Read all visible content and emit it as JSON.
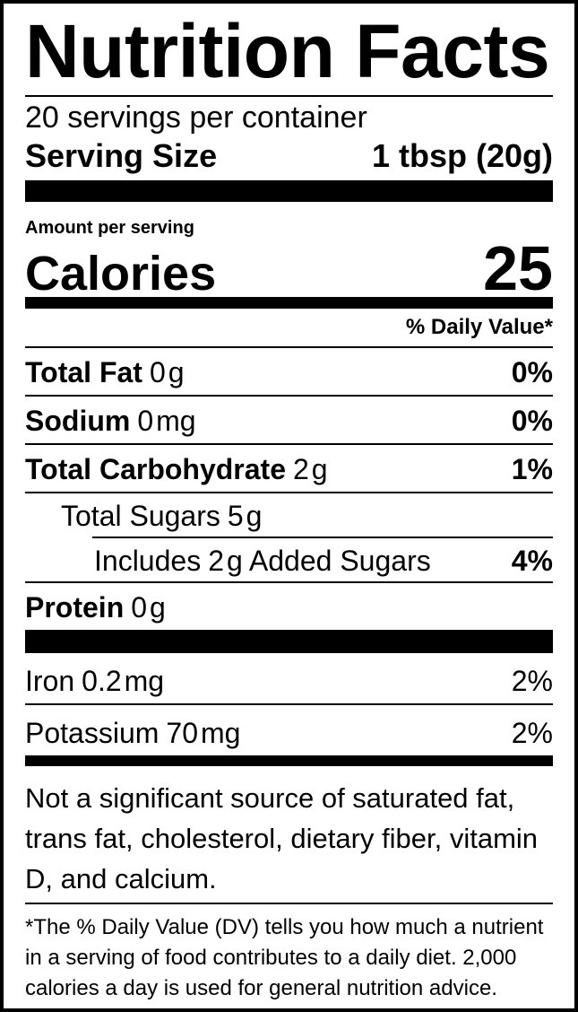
{
  "colors": {
    "text": "#000000",
    "background": "#ffffff",
    "bar": "#000000"
  },
  "header": {
    "title": "Nutrition Facts",
    "servings_per_container": "20 servings per container",
    "serving_size_label": "Serving Size",
    "serving_size_value": "1 tbsp (20g)"
  },
  "calories_section": {
    "amount_per_serving_label": "Amount per serving",
    "calories_label": "Calories",
    "calories_value": "25"
  },
  "daily_value_header": "% Daily Value*",
  "nutrients": [
    {
      "name": "Total Fat",
      "value": "0",
      "unit": "g",
      "dv": "0%"
    },
    {
      "name": "Sodium",
      "value": "0",
      "unit": "mg",
      "dv": "0%"
    },
    {
      "name": "Total Carbohydrate",
      "value": "2",
      "unit": "g",
      "dv": "1%"
    },
    {
      "name": "Total Sugars",
      "value": "5",
      "unit": "g",
      "dv": ""
    },
    {
      "name": "Includes",
      "value": "2",
      "unit": "g",
      "suffix": "Added Sugars",
      "dv": "4%"
    },
    {
      "name": "Protein",
      "value": "0",
      "unit": "g",
      "dv": ""
    }
  ],
  "minerals": [
    {
      "name": "Iron",
      "value": "0.2",
      "unit": "mg",
      "dv": "2%"
    },
    {
      "name": "Potassium",
      "value": "70",
      "unit": "mg",
      "dv": "2%"
    }
  ],
  "notes": {
    "insignificant": "Not a significant source of saturated fat, trans fat, cholesterol, dietary fiber, vitamin D, and calcium.",
    "daily_value_footnote": "*The % Daily Value (DV) tells you how much a nutrient in a serving of food contributes to a daily diet. 2,000 calories a day is used for general nutrition advice."
  }
}
